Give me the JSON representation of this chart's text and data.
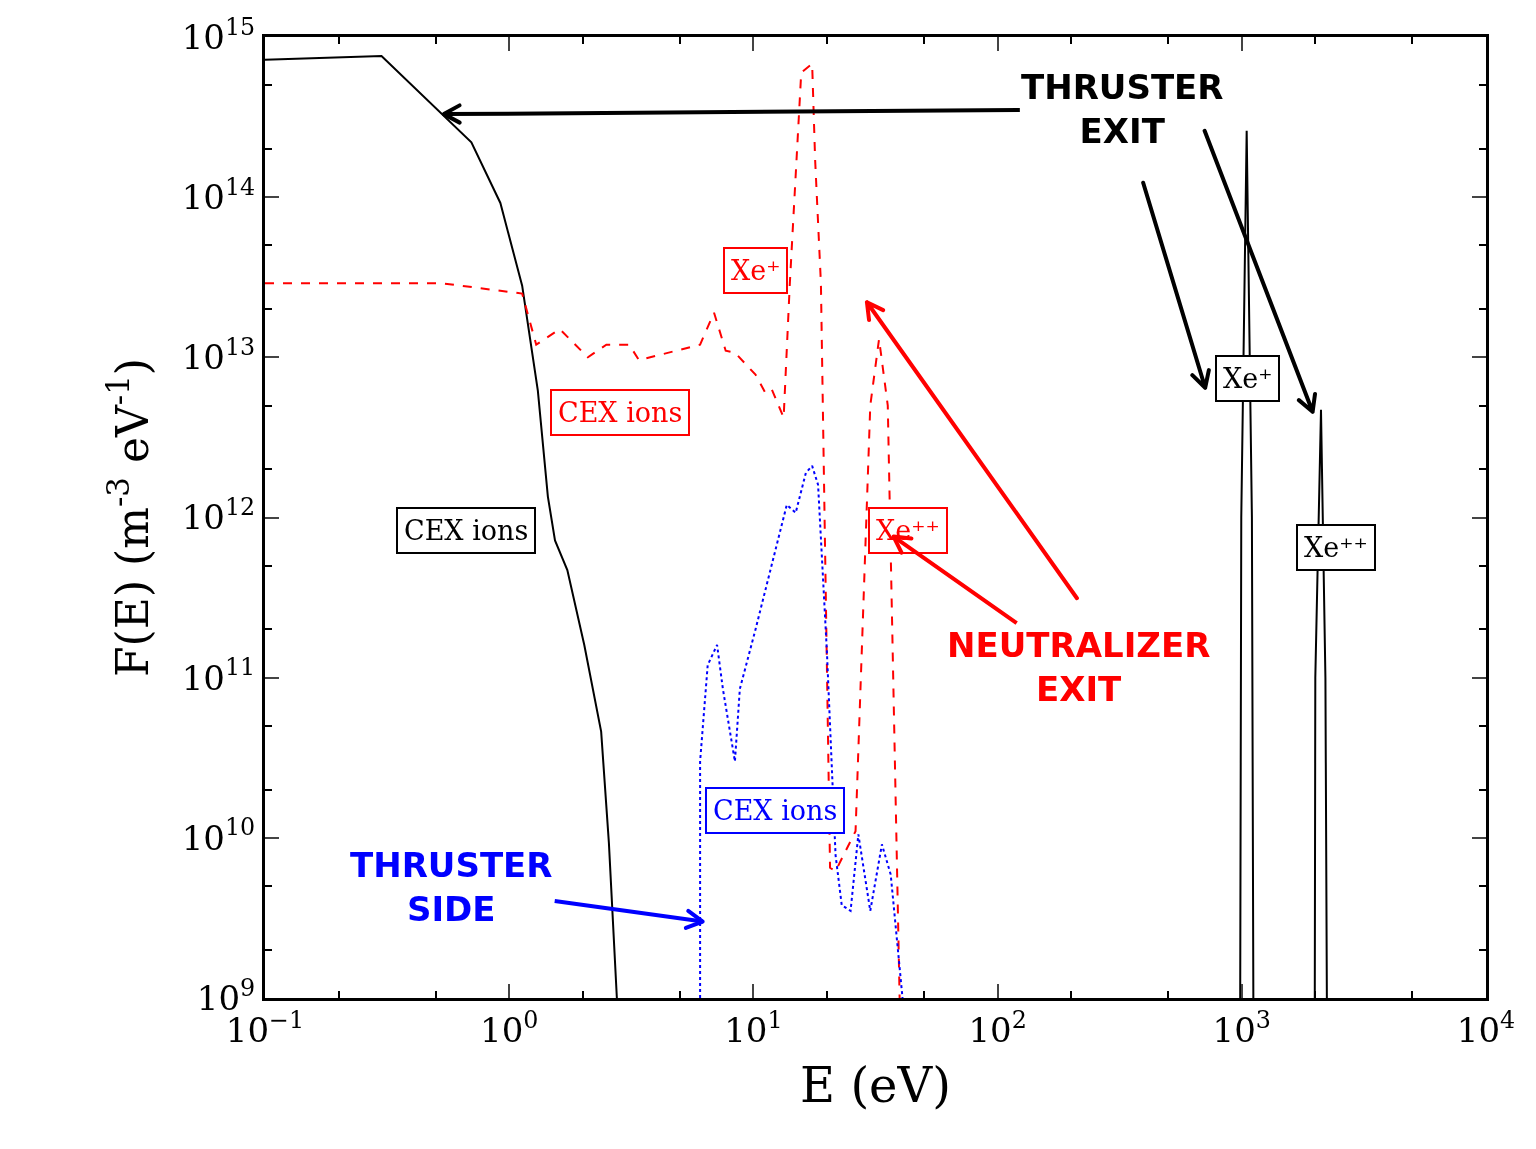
{
  "chart_data": {
    "type": "line",
    "xlabel": "E (eV)",
    "ylabel": "F(E) (m$^{-3}$ eV$^{-1}$)",
    "log": "xy",
    "grid": false,
    "xlim": [
      0.1,
      10000
    ],
    "ylim": [
      1000000000,
      1000000000000000
    ],
    "xticks": [
      {
        "value": 0.1,
        "label": "10$^{−1}$"
      },
      {
        "value": 1,
        "label": "10$^{0}$"
      },
      {
        "value": 10,
        "label": "10$^{1}$"
      },
      {
        "value": 100,
        "label": "10$^{2}$"
      },
      {
        "value": 1000,
        "label": "10$^{3}$"
      },
      {
        "value": 10000,
        "label": "10$^{4}$"
      }
    ],
    "yticks": [
      {
        "value": 1000000000,
        "label": "10$^{9}$"
      },
      {
        "value": 10000000000,
        "label": "10$^{10}$"
      },
      {
        "value": 100000000000,
        "label": "10$^{11}$"
      },
      {
        "value": 1000000000000,
        "label": "10$^{12}$"
      },
      {
        "value": 10000000000000,
        "label": "10$^{13}$"
      },
      {
        "value": 100000000000000,
        "label": "10$^{14}$"
      },
      {
        "value": 1000000000000000,
        "label": "10$^{15}$"
      }
    ],
    "series": [
      {
        "color": "#000000",
        "line_style": "solid",
        "x": [
          0.1,
          0.3,
          0.7,
          0.92,
          1.13,
          1.31,
          1.44,
          1.54,
          1.73,
          2.03,
          2.38,
          2.56,
          2.76,
          500,
          985,
          995,
          1047,
          1100,
          1115,
          1500,
          1990,
          2000,
          2110,
          2200,
          2230
        ],
        "values": [
          720000000000000.0,
          760000000000000.0,
          220000000000000.0,
          92000000000000.0,
          28000000000000.0,
          6200000000000.0,
          1350000000000.0,
          720000000000.0,
          470000000000.0,
          160000000000.0,
          46000000000.0,
          9300000000.0,
          1000000000.0,
          null,
          1000000000.0,
          1000000000000.0,
          260000000000000.0,
          1000000000000.0,
          1000000000.0,
          null,
          1000000000.0,
          100000000000.0,
          4700000000000.0,
          100000000000.0,
          1000000000.0
        ]
      },
      {
        "color": "#ff0000",
        "line_style": "dashed",
        "x": [
          0.1,
          0.53,
          1.13,
          1.29,
          1.61,
          2.1,
          2.5,
          3.1,
          3.4,
          6.05,
          6.9,
          7.7,
          8.4,
          10.2,
          11.2,
          11.9,
          13.3,
          14.1,
          15.7,
          17.4,
          17.9,
          18.9,
          20.6,
          21.7,
          26.2,
          30.1,
          32.7,
          35.5,
          39.7
        ],
        "values": [
          29000000000000.0,
          29000000000000.0,
          25000000000000.0,
          12000000000000.0,
          15000000000000.0,
          10000000000000.0,
          12000000000000.0,
          12000000000000.0,
          9600000000000.0,
          12000000000000.0,
          19000000000000.0,
          11000000000000.0,
          10700000000000.0,
          7800000000000.0,
          6000000000000.0,
          6300000000000.0,
          4200000000000.0,
          29000000000000.0,
          600000000000000.0,
          680000000000000.0,
          170000000000000.0,
          29000000000000.0,
          6500000000.0,
          6200000000.0,
          11000000000.0,
          5000000000000.0,
          13000000000000.0,
          5000000000000.0,
          1000000000.0
        ]
      },
      {
        "color": "#0000ff",
        "line_style": "dotted",
        "x": [
          6.05,
          6.05,
          6.5,
          7.1,
          7.5,
          8.4,
          8.8,
          10.2,
          13.7,
          14.9,
          16.4,
          17.4,
          18.4,
          20,
          21.7,
          23,
          25,
          26.9,
          30.1,
          33.6,
          36.5,
          40.8
        ],
        "values": [
          1000000000.0,
          30000000000.0,
          120000000000.0,
          160000000000.0,
          85000000000.0,
          30000000000.0,
          85000000000.0,
          200000000000.0,
          1200000000000.0,
          1070000000000.0,
          1900000000000.0,
          2100000000000.0,
          1600000000000.0,
          145000000000.0,
          7800000000.0,
          3800000000.0,
          3500000000.0,
          10500000000.0,
          3500000000.0,
          9100000000.0,
          5900000000.0,
          1000000000.0
        ]
      }
    ],
    "annotations": [
      "CEX ions",
      "CEX ions",
      "CEX ions",
      "Xe⁺",
      "Xe⁺⁺",
      "Xe⁺",
      "Xe⁺⁺",
      {
        "text": "THRUSTER\nEXIT",
        "x": 0.54,
        "y": 330000000000000.0
      },
      {
        "text": "NEUTRALIZER\nEXIT",
        "x": 37.5,
        "y": 760000000000.0
      },
      {
        "text": "THRUSTER\nSIDE",
        "x": 6.2,
        "y": 3000000000.0
      }
    ]
  }
}
